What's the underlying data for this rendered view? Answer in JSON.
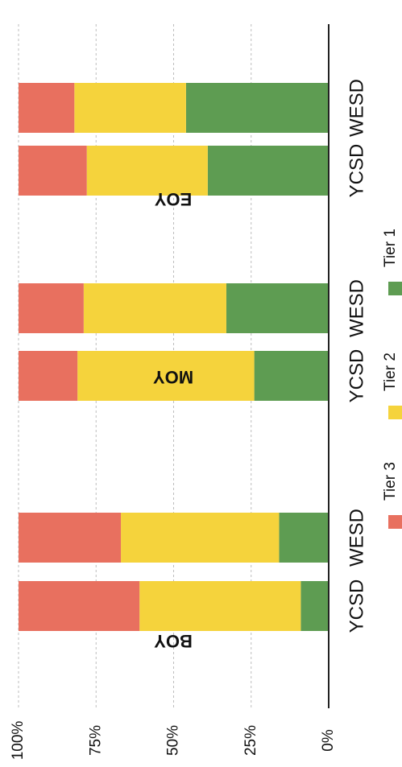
{
  "colors": {
    "tier3": "#e8705f",
    "tier2": "#f5d33c",
    "tier1": "#5e9c52"
  },
  "chart_data": {
    "type": "bar",
    "orientation": "horizontal-stacked-percent",
    "title": "",
    "xlabel": "",
    "ylabel": "",
    "xlim": [
      0,
      100
    ],
    "tick_labels": [
      "0%",
      "25%",
      "50%",
      "75%",
      "100%"
    ],
    "tick_values": [
      0,
      25,
      50,
      75,
      100
    ],
    "groups": [
      "BOY",
      "MOY",
      "EOY"
    ],
    "categories": [
      "YCSD",
      "WESD",
      "YCSD",
      "WESD",
      "YCSD",
      "WESD"
    ],
    "category_group": [
      0,
      0,
      1,
      1,
      2,
      2
    ],
    "series": [
      {
        "name": "Tier 1",
        "values": [
          9,
          16,
          24,
          33,
          39,
          46
        ]
      },
      {
        "name": "Tier 2",
        "values": [
          52,
          51,
          57,
          46,
          39,
          36
        ]
      },
      {
        "name": "Tier 3",
        "values": [
          39,
          33,
          19,
          21,
          22,
          18
        ]
      }
    ],
    "legend_position": "bottom",
    "legend_order": [
      "Tier 3",
      "Tier 2",
      "Tier 1"
    ],
    "grid": true
  }
}
